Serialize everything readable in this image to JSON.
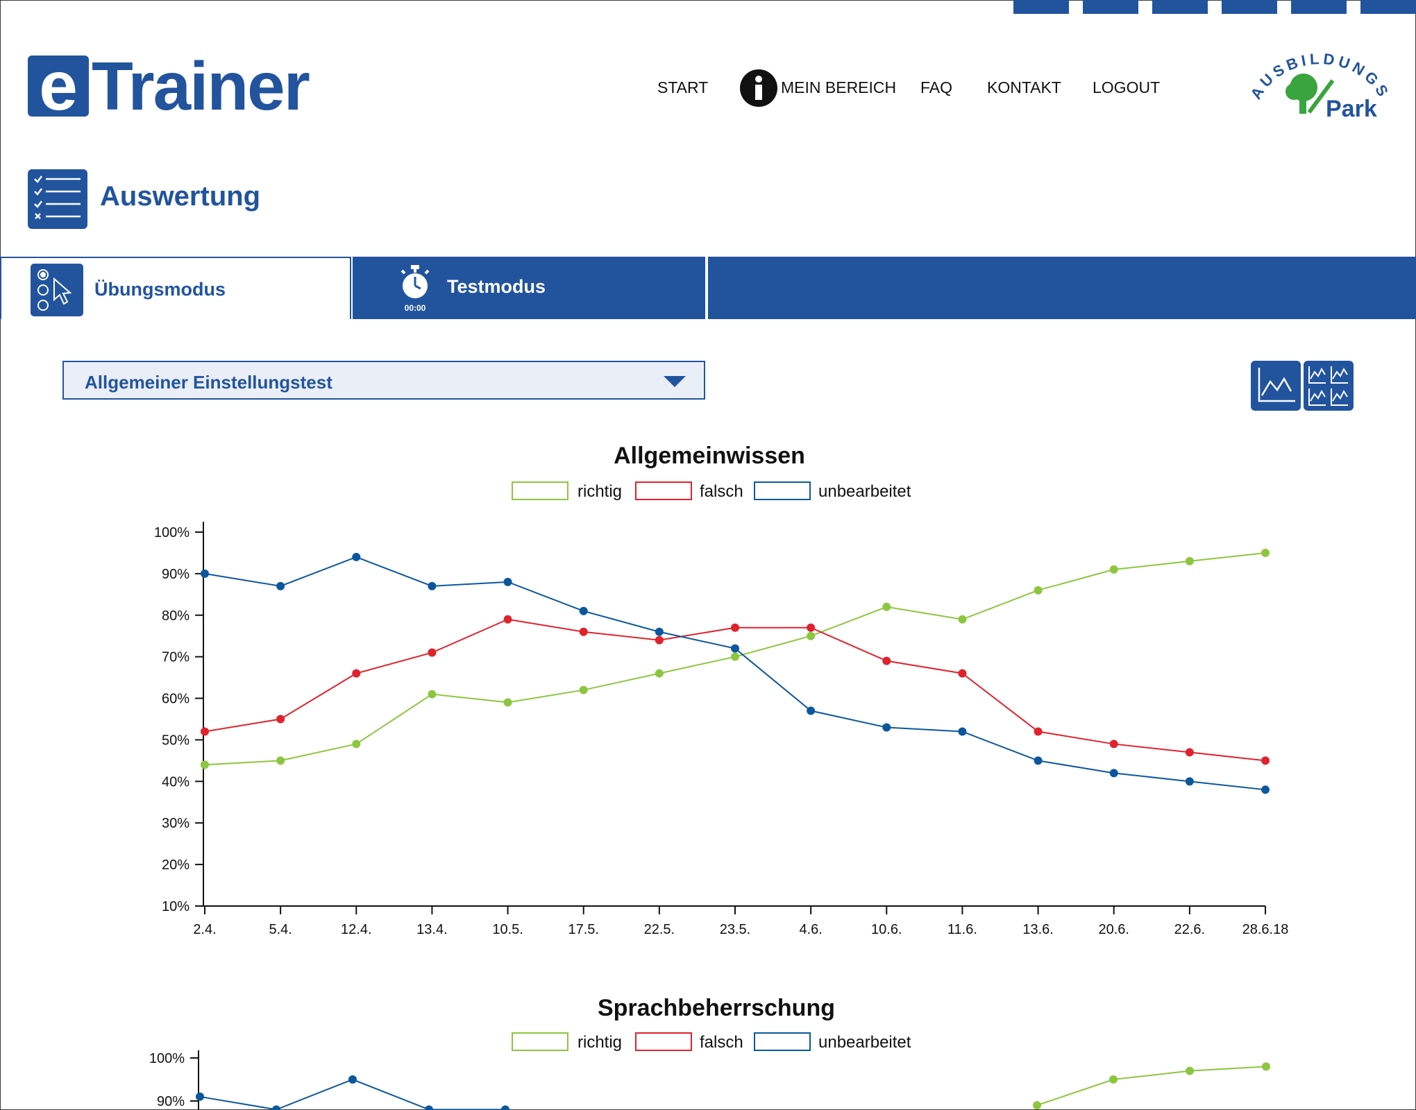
{
  "app": {
    "logo_letter": "e",
    "logo_text": "Trainer",
    "brand_logo_top": "AUSBILDUNGS",
    "brand_logo_bottom": "Park"
  },
  "nav": {
    "items": [
      "START",
      "MEIN BEREICH",
      "FAQ",
      "KONTAKT",
      "LOGOUT"
    ]
  },
  "page": {
    "title": "Auswertung"
  },
  "tabs": {
    "practice": "Übungsmodus",
    "test": "Testmodus",
    "test_timer": "00:00"
  },
  "select": {
    "value": "Allgemeiner Einstellungstest"
  },
  "colors": {
    "primary": "#22549e",
    "richtig": "#8cc63f",
    "falsch": "#e0222d",
    "unbearbeitet": "#0b579e"
  },
  "icons": [
    "checklist-icon",
    "cursor-choice-icon",
    "stopwatch-icon",
    "info-icon",
    "line-chart-icon",
    "multi-chart-icon",
    "dropdown-caret-icon"
  ],
  "chart_data": [
    {
      "type": "line",
      "title": "Allgemeinwissen",
      "categories": [
        "2.4.",
        "5.4.",
        "12.4.",
        "13.4.",
        "10.5.",
        "17.5.",
        "22.5.",
        "23.5.",
        "4.6.",
        "10.6.",
        "11.6.",
        "13.6.",
        "20.6.",
        "22.6.",
        "28.6.18"
      ],
      "yticks": [
        "100%",
        "90%",
        "80%",
        "70%",
        "60%",
        "50%",
        "40%",
        "30%",
        "20%",
        "10%"
      ],
      "ylim": [
        10,
        100
      ],
      "legend": [
        "richtig",
        "falsch",
        "unbearbeitet"
      ],
      "legend_position": "top-center",
      "series": [
        {
          "name": "richtig",
          "values": [
            44,
            45,
            49,
            61,
            59,
            62,
            66,
            70,
            75,
            82,
            79,
            86,
            91,
            93,
            95
          ]
        },
        {
          "name": "falsch",
          "values": [
            52,
            55,
            66,
            71,
            79,
            76,
            74,
            77,
            77,
            69,
            66,
            52,
            49,
            47,
            45
          ]
        },
        {
          "name": "unbearbeitet",
          "values": [
            90,
            87,
            94,
            87,
            88,
            81,
            76,
            72,
            57,
            53,
            52,
            45,
            42,
            40,
            38
          ]
        }
      ]
    },
    {
      "type": "line",
      "title": "Sprachbeherrschung",
      "legend": [
        "richtig",
        "falsch",
        "unbearbeitet"
      ],
      "legend_position": "top-center",
      "yticks": [
        "100%",
        "90%"
      ],
      "ylim": [
        10,
        100
      ],
      "series": [
        {
          "name": "unbearbeitet",
          "values": [
            91,
            88,
            95,
            88,
            88
          ]
        },
        {
          "name": "richtig",
          "values": [
            89,
            95,
            97,
            98
          ]
        }
      ]
    }
  ]
}
